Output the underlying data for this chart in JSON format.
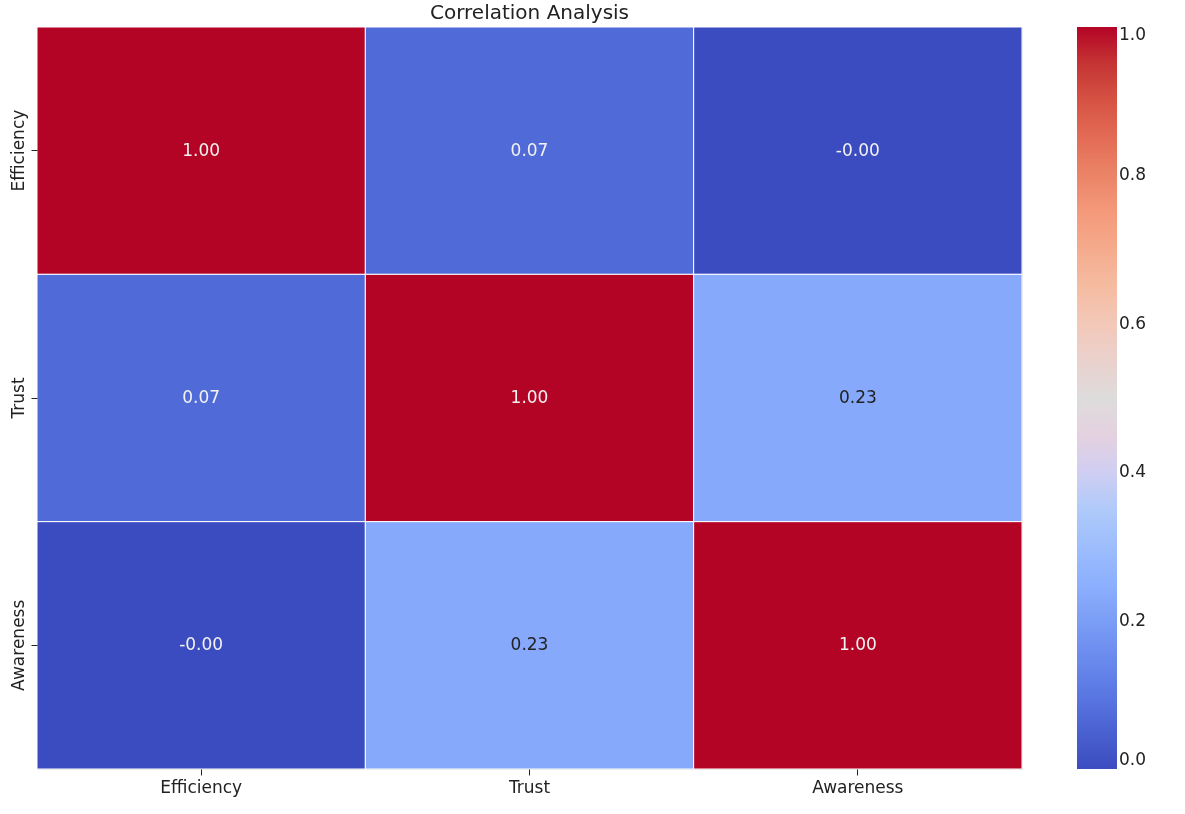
{
  "chart_data": {
    "type": "heatmap",
    "title": "Correlation Analysis",
    "categories": [
      "Efficiency",
      "Trust",
      "Awareness"
    ],
    "y_categories": [
      "Efficiency",
      "Trust",
      "Awareness"
    ],
    "cells": [
      [
        1.0,
        0.07,
        0.0
      ],
      [
        0.07,
        1.0,
        0.23
      ],
      [
        0.0,
        0.23,
        1.0
      ]
    ],
    "cell_labels": [
      [
        "1.00",
        "0.07",
        "-0.00"
      ],
      [
        "0.07",
        "1.00",
        "0.23"
      ],
      [
        "-0.00",
        "0.23",
        "1.00"
      ]
    ],
    "clim": [
      0,
      1
    ],
    "cticks": [
      {
        "value": 0,
        "label": "0.0"
      },
      {
        "value": 0.2,
        "label": "0.2"
      },
      {
        "value": 0.4,
        "label": "0.4"
      },
      {
        "value": 0.6,
        "label": "0.6"
      },
      {
        "value": 0.8,
        "label": "0.8"
      },
      {
        "value": 1,
        "label": "1.0"
      }
    ]
  }
}
